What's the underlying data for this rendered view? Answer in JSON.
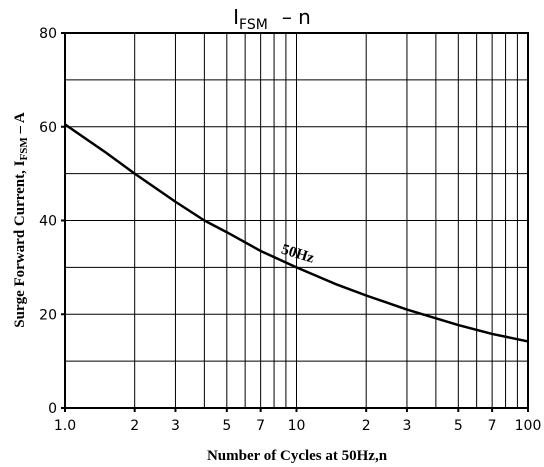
{
  "chart_data": {
    "type": "line",
    "title": {
      "main": "I",
      "sub": "FSM",
      "rest": "–  n"
    },
    "xlabel": "Number of Cycles at 50Hz,n",
    "ylabel": {
      "main": "Surge Forward Current, I",
      "sub": "FSM",
      "rest": " – A"
    },
    "xscale": "log",
    "x": [
      1,
      1.5,
      2,
      3,
      4,
      5,
      7,
      10,
      15,
      20,
      30,
      50,
      70,
      100
    ],
    "series": [
      {
        "name": "50Hz",
        "color": "#000000",
        "values": [
          60.5,
          54.5,
          50,
          44,
          40,
          37.5,
          33.5,
          30,
          26.3,
          24,
          21,
          17.7,
          15.8,
          14.2
        ]
      }
    ],
    "xlim": [
      1,
      100
    ],
    "ylim": [
      0,
      80
    ],
    "xticks": [
      {
        "value": 1,
        "label": "1.0"
      },
      2,
      3,
      5,
      7,
      10,
      {
        "value": 20,
        "label": "2"
      },
      {
        "value": 30,
        "label": "3"
      },
      {
        "value": 50,
        "label": "5"
      },
      {
        "value": 70,
        "label": "7"
      },
      100
    ],
    "yticks": [
      0,
      20,
      40,
      60,
      80
    ],
    "xgrid": [
      2,
      3,
      4,
      5,
      6,
      7,
      8,
      9,
      10,
      20,
      30,
      40,
      50,
      60,
      70,
      80,
      90
    ],
    "ygrid": [
      10,
      20,
      30,
      40,
      50,
      60,
      70
    ],
    "grid": true,
    "annotation": {
      "text": "50Hz",
      "x": 10,
      "y": 32
    }
  }
}
